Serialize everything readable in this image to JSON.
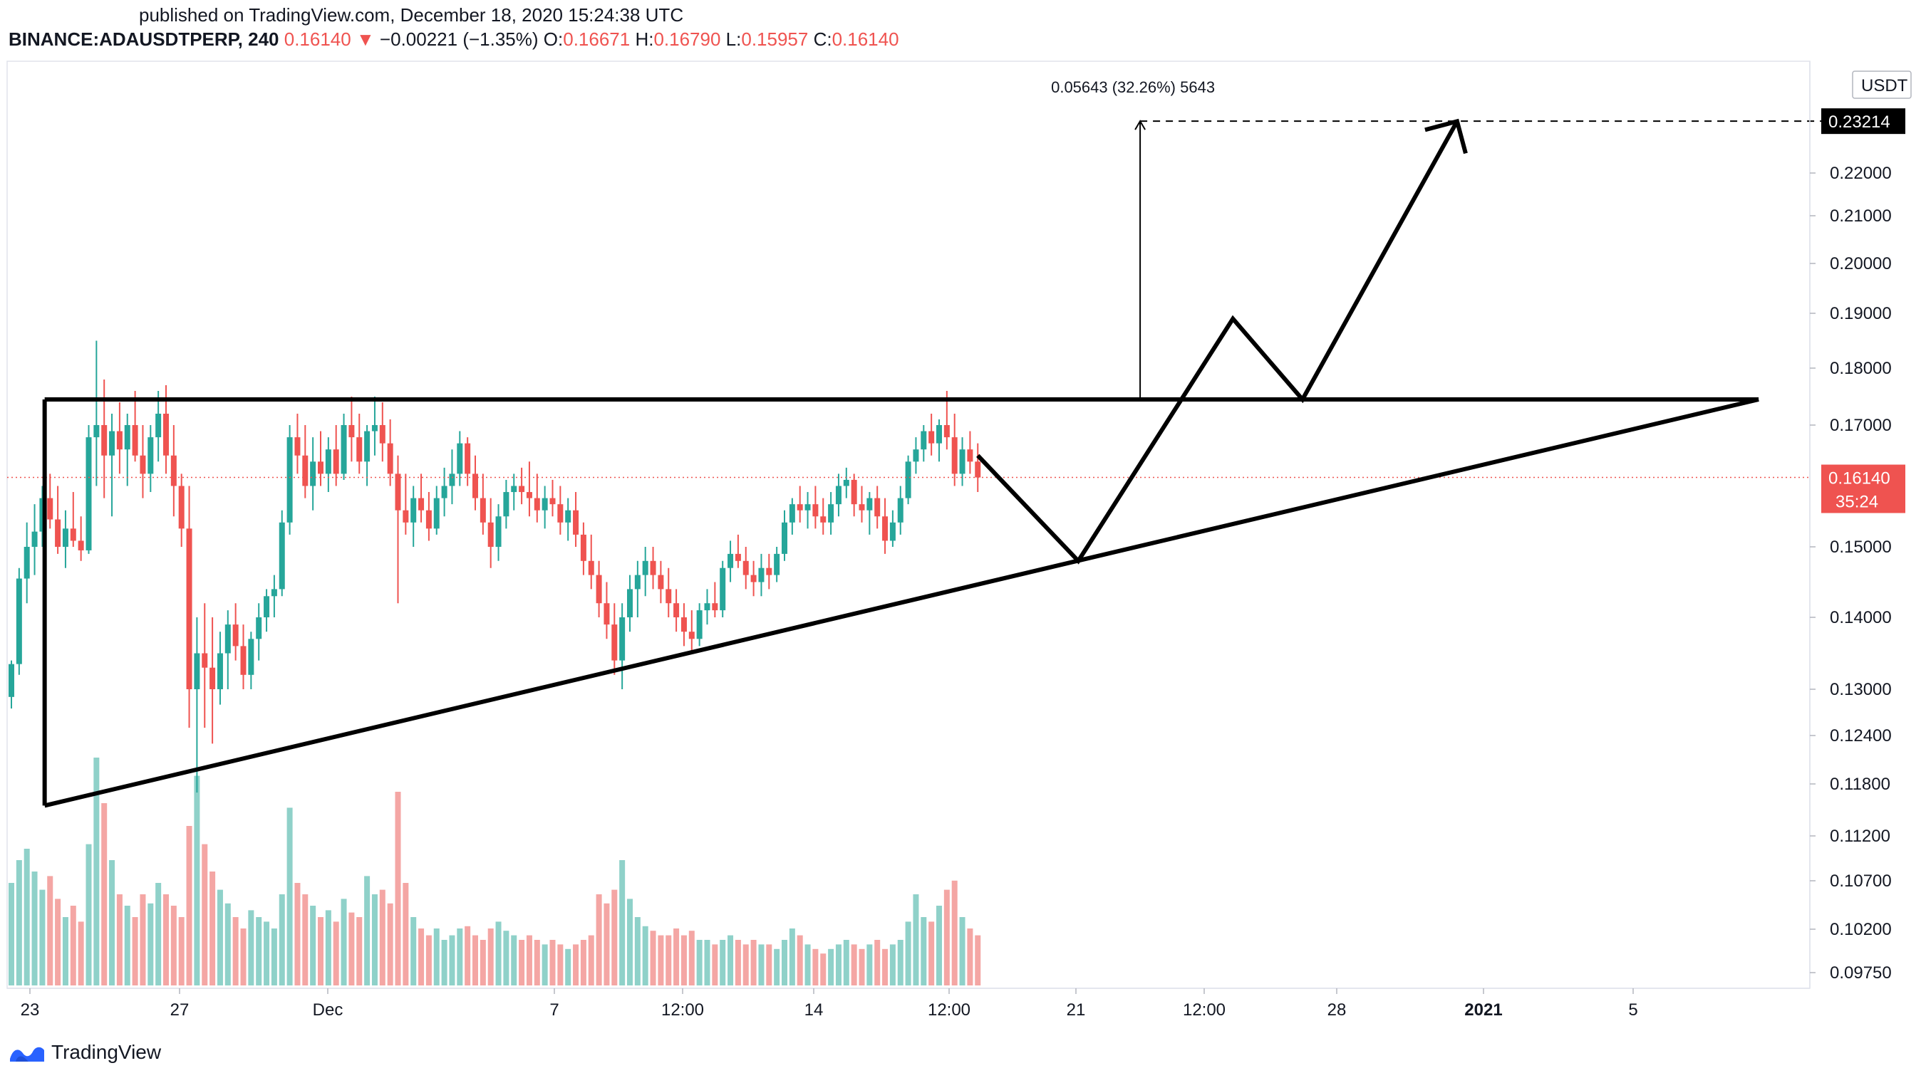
{
  "published": "published on TradingView.com, December 18, 2020 15:24:38 UTC",
  "header": {
    "symbol": "BINANCE:ADAUSDTPERP, 240",
    "last": "0.16140",
    "change_arrow": "▼",
    "change": "−0.00221 (−1.35%)",
    "o_label": "O:",
    "o": "0.16671",
    "h_label": "H:",
    "h": "0.16790",
    "l_label": "L:",
    "l": "0.15957",
    "c_label": "C:",
    "c": "0.16140"
  },
  "brand": "TradingView",
  "colors": {
    "up": "#26a69a",
    "down": "#ef5350",
    "up_volume": "#8fd1c9",
    "down_volume": "#f4a6a4",
    "drawing": "#000000",
    "grid": "#f0f3fa"
  },
  "chart_data": {
    "type": "candlestick",
    "symbol": "ADAUSDTPERP",
    "interval": "240",
    "currency": "USDT",
    "y_ticks": [
      "0.22000",
      "0.21000",
      "0.20000",
      "0.19000",
      "0.18000",
      "0.17000",
      "0.15000",
      "0.14000",
      "0.13000",
      "0.12400",
      "0.11800",
      "0.11200",
      "0.10700",
      "0.10200",
      "0.09750"
    ],
    "y_tick_values": [
      0.22,
      0.21,
      0.2,
      0.19,
      0.18,
      0.17,
      0.15,
      0.14,
      0.13,
      0.124,
      0.118,
      0.112,
      0.107,
      0.102,
      0.0975
    ],
    "x_ticks": [
      "23",
      "27",
      "Dec",
      "7",
      "12:00",
      "14",
      "12:00",
      "21",
      "12:00",
      "28",
      "2021",
      "5"
    ],
    "last_price_label": "0.16140",
    "countdown_label": "35:24",
    "target_price_label": "0.23214",
    "measure_label": "0.05643 (32.26%) 5643",
    "resistance": 0.1745,
    "support_start": 0.1155,
    "support_end": 0.1745,
    "candles": [
      {
        "t": 0,
        "o": 0.129,
        "h": 0.134,
        "l": 0.1275,
        "c": 0.1335
      },
      {
        "t": 1,
        "o": 0.1335,
        "h": 0.147,
        "l": 0.132,
        "c": 0.1455
      },
      {
        "t": 2,
        "o": 0.1455,
        "h": 0.154,
        "l": 0.142,
        "c": 0.15
      },
      {
        "t": 3,
        "o": 0.15,
        "h": 0.157,
        "l": 0.146,
        "c": 0.1525
      },
      {
        "t": 4,
        "o": 0.1525,
        "h": 0.16,
        "l": 0.15,
        "c": 0.158
      },
      {
        "t": 5,
        "o": 0.158,
        "h": 0.162,
        "l": 0.153,
        "c": 0.1545
      },
      {
        "t": 6,
        "o": 0.1545,
        "h": 0.16,
        "l": 0.149,
        "c": 0.15
      },
      {
        "t": 7,
        "o": 0.15,
        "h": 0.156,
        "l": 0.147,
        "c": 0.153
      },
      {
        "t": 8,
        "o": 0.153,
        "h": 0.159,
        "l": 0.15,
        "c": 0.151
      },
      {
        "t": 9,
        "o": 0.151,
        "h": 0.155,
        "l": 0.148,
        "c": 0.1495
      },
      {
        "t": 10,
        "o": 0.1495,
        "h": 0.17,
        "l": 0.149,
        "c": 0.168
      },
      {
        "t": 11,
        "o": 0.168,
        "h": 0.185,
        "l": 0.16,
        "c": 0.17
      },
      {
        "t": 12,
        "o": 0.17,
        "h": 0.178,
        "l": 0.158,
        "c": 0.165
      },
      {
        "t": 13,
        "o": 0.165,
        "h": 0.172,
        "l": 0.155,
        "c": 0.169
      },
      {
        "t": 14,
        "o": 0.169,
        "h": 0.174,
        "l": 0.162,
        "c": 0.166
      },
      {
        "t": 15,
        "o": 0.166,
        "h": 0.172,
        "l": 0.16,
        "c": 0.17
      },
      {
        "t": 16,
        "o": 0.17,
        "h": 0.176,
        "l": 0.164,
        "c": 0.165
      },
      {
        "t": 17,
        "o": 0.165,
        "h": 0.17,
        "l": 0.158,
        "c": 0.162
      },
      {
        "t": 18,
        "o": 0.162,
        "h": 0.17,
        "l": 0.159,
        "c": 0.168
      },
      {
        "t": 19,
        "o": 0.168,
        "h": 0.176,
        "l": 0.164,
        "c": 0.172
      },
      {
        "t": 20,
        "o": 0.172,
        "h": 0.177,
        "l": 0.162,
        "c": 0.165
      },
      {
        "t": 21,
        "o": 0.165,
        "h": 0.17,
        "l": 0.155,
        "c": 0.16
      },
      {
        "t": 22,
        "o": 0.16,
        "h": 0.162,
        "l": 0.15,
        "c": 0.153
      },
      {
        "t": 23,
        "o": 0.153,
        "h": 0.16,
        "l": 0.125,
        "c": 0.13
      },
      {
        "t": 24,
        "o": 0.13,
        "h": 0.14,
        "l": 0.117,
        "c": 0.135
      },
      {
        "t": 25,
        "o": 0.135,
        "h": 0.142,
        "l": 0.125,
        "c": 0.133
      },
      {
        "t": 26,
        "o": 0.133,
        "h": 0.14,
        "l": 0.123,
        "c": 0.13
      },
      {
        "t": 27,
        "o": 0.13,
        "h": 0.138,
        "l": 0.128,
        "c": 0.135
      },
      {
        "t": 28,
        "o": 0.135,
        "h": 0.141,
        "l": 0.13,
        "c": 0.139
      },
      {
        "t": 29,
        "o": 0.139,
        "h": 0.142,
        "l": 0.134,
        "c": 0.136
      },
      {
        "t": 30,
        "o": 0.136,
        "h": 0.139,
        "l": 0.13,
        "c": 0.132
      },
      {
        "t": 31,
        "o": 0.132,
        "h": 0.138,
        "l": 0.13,
        "c": 0.137
      },
      {
        "t": 32,
        "o": 0.137,
        "h": 0.142,
        "l": 0.134,
        "c": 0.14
      },
      {
        "t": 33,
        "o": 0.14,
        "h": 0.144,
        "l": 0.138,
        "c": 0.143
      },
      {
        "t": 34,
        "o": 0.143,
        "h": 0.146,
        "l": 0.14,
        "c": 0.144
      },
      {
        "t": 35,
        "o": 0.144,
        "h": 0.156,
        "l": 0.143,
        "c": 0.154
      },
      {
        "t": 36,
        "o": 0.154,
        "h": 0.17,
        "l": 0.152,
        "c": 0.168
      },
      {
        "t": 37,
        "o": 0.168,
        "h": 0.172,
        "l": 0.162,
        "c": 0.165
      },
      {
        "t": 38,
        "o": 0.165,
        "h": 0.17,
        "l": 0.158,
        "c": 0.16
      },
      {
        "t": 39,
        "o": 0.16,
        "h": 0.168,
        "l": 0.156,
        "c": 0.164
      },
      {
        "t": 40,
        "o": 0.164,
        "h": 0.169,
        "l": 0.16,
        "c": 0.162
      },
      {
        "t": 41,
        "o": 0.162,
        "h": 0.168,
        "l": 0.159,
        "c": 0.166
      },
      {
        "t": 42,
        "o": 0.166,
        "h": 0.17,
        "l": 0.16,
        "c": 0.162
      },
      {
        "t": 43,
        "o": 0.162,
        "h": 0.172,
        "l": 0.161,
        "c": 0.17
      },
      {
        "t": 44,
        "o": 0.17,
        "h": 0.175,
        "l": 0.164,
        "c": 0.168
      },
      {
        "t": 45,
        "o": 0.168,
        "h": 0.172,
        "l": 0.162,
        "c": 0.164
      },
      {
        "t": 46,
        "o": 0.164,
        "h": 0.17,
        "l": 0.16,
        "c": 0.169
      },
      {
        "t": 47,
        "o": 0.169,
        "h": 0.175,
        "l": 0.165,
        "c": 0.17
      },
      {
        "t": 48,
        "o": 0.17,
        "h": 0.174,
        "l": 0.164,
        "c": 0.167
      },
      {
        "t": 49,
        "o": 0.167,
        "h": 0.171,
        "l": 0.16,
        "c": 0.162
      },
      {
        "t": 50,
        "o": 0.162,
        "h": 0.165,
        "l": 0.142,
        "c": 0.156
      },
      {
        "t": 51,
        "o": 0.156,
        "h": 0.162,
        "l": 0.152,
        "c": 0.154
      },
      {
        "t": 52,
        "o": 0.154,
        "h": 0.16,
        "l": 0.15,
        "c": 0.158
      },
      {
        "t": 53,
        "o": 0.158,
        "h": 0.162,
        "l": 0.154,
        "c": 0.156
      },
      {
        "t": 54,
        "o": 0.156,
        "h": 0.159,
        "l": 0.151,
        "c": 0.153
      },
      {
        "t": 55,
        "o": 0.153,
        "h": 0.16,
        "l": 0.152,
        "c": 0.158
      },
      {
        "t": 56,
        "o": 0.158,
        "h": 0.163,
        "l": 0.155,
        "c": 0.16
      },
      {
        "t": 57,
        "o": 0.16,
        "h": 0.166,
        "l": 0.157,
        "c": 0.162
      },
      {
        "t": 58,
        "o": 0.162,
        "h": 0.169,
        "l": 0.16,
        "c": 0.167
      },
      {
        "t": 59,
        "o": 0.167,
        "h": 0.168,
        "l": 0.16,
        "c": 0.162
      },
      {
        "t": 60,
        "o": 0.162,
        "h": 0.165,
        "l": 0.156,
        "c": 0.158
      },
      {
        "t": 61,
        "o": 0.158,
        "h": 0.162,
        "l": 0.152,
        "c": 0.154
      },
      {
        "t": 62,
        "o": 0.154,
        "h": 0.158,
        "l": 0.147,
        "c": 0.15
      },
      {
        "t": 63,
        "o": 0.15,
        "h": 0.157,
        "l": 0.148,
        "c": 0.155
      },
      {
        "t": 64,
        "o": 0.155,
        "h": 0.161,
        "l": 0.153,
        "c": 0.159
      },
      {
        "t": 65,
        "o": 0.159,
        "h": 0.162,
        "l": 0.156,
        "c": 0.16
      },
      {
        "t": 66,
        "o": 0.16,
        "h": 0.163,
        "l": 0.157,
        "c": 0.159
      },
      {
        "t": 67,
        "o": 0.159,
        "h": 0.164,
        "l": 0.155,
        "c": 0.158
      },
      {
        "t": 68,
        "o": 0.158,
        "h": 0.162,
        "l": 0.154,
        "c": 0.156
      },
      {
        "t": 69,
        "o": 0.156,
        "h": 0.16,
        "l": 0.153,
        "c": 0.158
      },
      {
        "t": 70,
        "o": 0.158,
        "h": 0.161,
        "l": 0.155,
        "c": 0.157
      },
      {
        "t": 71,
        "o": 0.157,
        "h": 0.16,
        "l": 0.152,
        "c": 0.154
      },
      {
        "t": 72,
        "o": 0.154,
        "h": 0.158,
        "l": 0.151,
        "c": 0.156
      },
      {
        "t": 73,
        "o": 0.156,
        "h": 0.159,
        "l": 0.15,
        "c": 0.152
      },
      {
        "t": 74,
        "o": 0.152,
        "h": 0.154,
        "l": 0.146,
        "c": 0.148
      },
      {
        "t": 75,
        "o": 0.148,
        "h": 0.152,
        "l": 0.144,
        "c": 0.146
      },
      {
        "t": 76,
        "o": 0.146,
        "h": 0.148,
        "l": 0.14,
        "c": 0.142
      },
      {
        "t": 77,
        "o": 0.142,
        "h": 0.145,
        "l": 0.137,
        "c": 0.139
      },
      {
        "t": 78,
        "o": 0.139,
        "h": 0.142,
        "l": 0.132,
        "c": 0.134
      },
      {
        "t": 79,
        "o": 0.134,
        "h": 0.142,
        "l": 0.13,
        "c": 0.14
      },
      {
        "t": 80,
        "o": 0.14,
        "h": 0.146,
        "l": 0.138,
        "c": 0.144
      },
      {
        "t": 81,
        "o": 0.144,
        "h": 0.148,
        "l": 0.14,
        "c": 0.146
      },
      {
        "t": 82,
        "o": 0.146,
        "h": 0.15,
        "l": 0.143,
        "c": 0.148
      },
      {
        "t": 83,
        "o": 0.148,
        "h": 0.15,
        "l": 0.144,
        "c": 0.146
      },
      {
        "t": 84,
        "o": 0.146,
        "h": 0.148,
        "l": 0.142,
        "c": 0.144
      },
      {
        "t": 85,
        "o": 0.144,
        "h": 0.147,
        "l": 0.14,
        "c": 0.142
      },
      {
        "t": 86,
        "o": 0.142,
        "h": 0.144,
        "l": 0.138,
        "c": 0.14
      },
      {
        "t": 87,
        "o": 0.14,
        "h": 0.142,
        "l": 0.136,
        "c": 0.138
      },
      {
        "t": 88,
        "o": 0.138,
        "h": 0.141,
        "l": 0.135,
        "c": 0.137
      },
      {
        "t": 89,
        "o": 0.137,
        "h": 0.142,
        "l": 0.136,
        "c": 0.141
      },
      {
        "t": 90,
        "o": 0.141,
        "h": 0.144,
        "l": 0.139,
        "c": 0.142
      },
      {
        "t": 91,
        "o": 0.142,
        "h": 0.145,
        "l": 0.14,
        "c": 0.141
      },
      {
        "t": 92,
        "o": 0.141,
        "h": 0.148,
        "l": 0.14,
        "c": 0.147
      },
      {
        "t": 93,
        "o": 0.147,
        "h": 0.151,
        "l": 0.145,
        "c": 0.149
      },
      {
        "t": 94,
        "o": 0.149,
        "h": 0.152,
        "l": 0.147,
        "c": 0.148
      },
      {
        "t": 95,
        "o": 0.148,
        "h": 0.15,
        "l": 0.144,
        "c": 0.146
      },
      {
        "t": 96,
        "o": 0.146,
        "h": 0.148,
        "l": 0.143,
        "c": 0.145
      },
      {
        "t": 97,
        "o": 0.145,
        "h": 0.149,
        "l": 0.143,
        "c": 0.147
      },
      {
        "t": 98,
        "o": 0.147,
        "h": 0.149,
        "l": 0.144,
        "c": 0.146
      },
      {
        "t": 99,
        "o": 0.146,
        "h": 0.15,
        "l": 0.145,
        "c": 0.149
      },
      {
        "t": 100,
        "o": 0.149,
        "h": 0.156,
        "l": 0.148,
        "c": 0.154
      },
      {
        "t": 101,
        "o": 0.154,
        "h": 0.158,
        "l": 0.152,
        "c": 0.157
      },
      {
        "t": 102,
        "o": 0.157,
        "h": 0.16,
        "l": 0.154,
        "c": 0.156
      },
      {
        "t": 103,
        "o": 0.156,
        "h": 0.159,
        "l": 0.153,
        "c": 0.157
      },
      {
        "t": 104,
        "o": 0.157,
        "h": 0.16,
        "l": 0.153,
        "c": 0.155
      },
      {
        "t": 105,
        "o": 0.155,
        "h": 0.158,
        "l": 0.152,
        "c": 0.154
      },
      {
        "t": 106,
        "o": 0.154,
        "h": 0.159,
        "l": 0.152,
        "c": 0.157
      },
      {
        "t": 107,
        "o": 0.157,
        "h": 0.162,
        "l": 0.155,
        "c": 0.16
      },
      {
        "t": 108,
        "o": 0.16,
        "h": 0.163,
        "l": 0.158,
        "c": 0.161
      },
      {
        "t": 109,
        "o": 0.161,
        "h": 0.162,
        "l": 0.155,
        "c": 0.157
      },
      {
        "t": 110,
        "o": 0.157,
        "h": 0.16,
        "l": 0.154,
        "c": 0.156
      },
      {
        "t": 111,
        "o": 0.156,
        "h": 0.159,
        "l": 0.152,
        "c": 0.158
      },
      {
        "t": 112,
        "o": 0.158,
        "h": 0.16,
        "l": 0.153,
        "c": 0.155
      },
      {
        "t": 113,
        "o": 0.155,
        "h": 0.158,
        "l": 0.149,
        "c": 0.151
      },
      {
        "t": 114,
        "o": 0.151,
        "h": 0.156,
        "l": 0.15,
        "c": 0.154
      },
      {
        "t": 115,
        "o": 0.154,
        "h": 0.16,
        "l": 0.152,
        "c": 0.158
      },
      {
        "t": 116,
        "o": 0.158,
        "h": 0.165,
        "l": 0.157,
        "c": 0.164
      },
      {
        "t": 117,
        "o": 0.164,
        "h": 0.168,
        "l": 0.162,
        "c": 0.166
      },
      {
        "t": 118,
        "o": 0.166,
        "h": 0.17,
        "l": 0.164,
        "c": 0.169
      },
      {
        "t": 119,
        "o": 0.169,
        "h": 0.172,
        "l": 0.165,
        "c": 0.167
      },
      {
        "t": 120,
        "o": 0.167,
        "h": 0.171,
        "l": 0.164,
        "c": 0.17
      },
      {
        "t": 121,
        "o": 0.17,
        "h": 0.176,
        "l": 0.166,
        "c": 0.168
      },
      {
        "t": 122,
        "o": 0.168,
        "h": 0.172,
        "l": 0.16,
        "c": 0.162
      },
      {
        "t": 123,
        "o": 0.162,
        "h": 0.168,
        "l": 0.16,
        "c": 0.166
      },
      {
        "t": 124,
        "o": 0.166,
        "h": 0.169,
        "l": 0.162,
        "c": 0.164
      },
      {
        "t": 125,
        "o": 0.164,
        "h": 0.167,
        "l": 0.159,
        "c": 0.1614
      }
    ],
    "projection_path": [
      [
        125,
        0.165
      ],
      [
        138,
        0.148
      ],
      [
        158,
        0.189
      ],
      [
        167,
        0.1745
      ],
      [
        187,
        0.2321
      ]
    ],
    "measure_x": 146,
    "volume": [
      0.45,
      0.55,
      0.6,
      0.5,
      0.42,
      0.48,
      0.38,
      0.3,
      0.35,
      0.28,
      0.62,
      1.0,
      0.8,
      0.55,
      0.4,
      0.35,
      0.3,
      0.4,
      0.36,
      0.45,
      0.4,
      0.35,
      0.3,
      0.7,
      0.92,
      0.62,
      0.5,
      0.42,
      0.36,
      0.3,
      0.25,
      0.33,
      0.3,
      0.28,
      0.25,
      0.4,
      0.78,
      0.45,
      0.4,
      0.35,
      0.3,
      0.33,
      0.28,
      0.38,
      0.32,
      0.3,
      0.48,
      0.4,
      0.42,
      0.36,
      0.85,
      0.45,
      0.3,
      0.25,
      0.22,
      0.25,
      0.2,
      0.22,
      0.25,
      0.26,
      0.22,
      0.2,
      0.25,
      0.28,
      0.24,
      0.22,
      0.2,
      0.22,
      0.2,
      0.18,
      0.2,
      0.18,
      0.16,
      0.18,
      0.2,
      0.22,
      0.4,
      0.36,
      0.42,
      0.55,
      0.38,
      0.3,
      0.26,
      0.24,
      0.22,
      0.22,
      0.25,
      0.22,
      0.24,
      0.2,
      0.2,
      0.18,
      0.2,
      0.22,
      0.2,
      0.18,
      0.2,
      0.18,
      0.18,
      0.16,
      0.2,
      0.25,
      0.22,
      0.18,
      0.16,
      0.14,
      0.16,
      0.18,
      0.2,
      0.18,
      0.16,
      0.18,
      0.2,
      0.16,
      0.18,
      0.2,
      0.28,
      0.4,
      0.3,
      0.28,
      0.35,
      0.42,
      0.46,
      0.3,
      0.25,
      0.22
    ]
  }
}
